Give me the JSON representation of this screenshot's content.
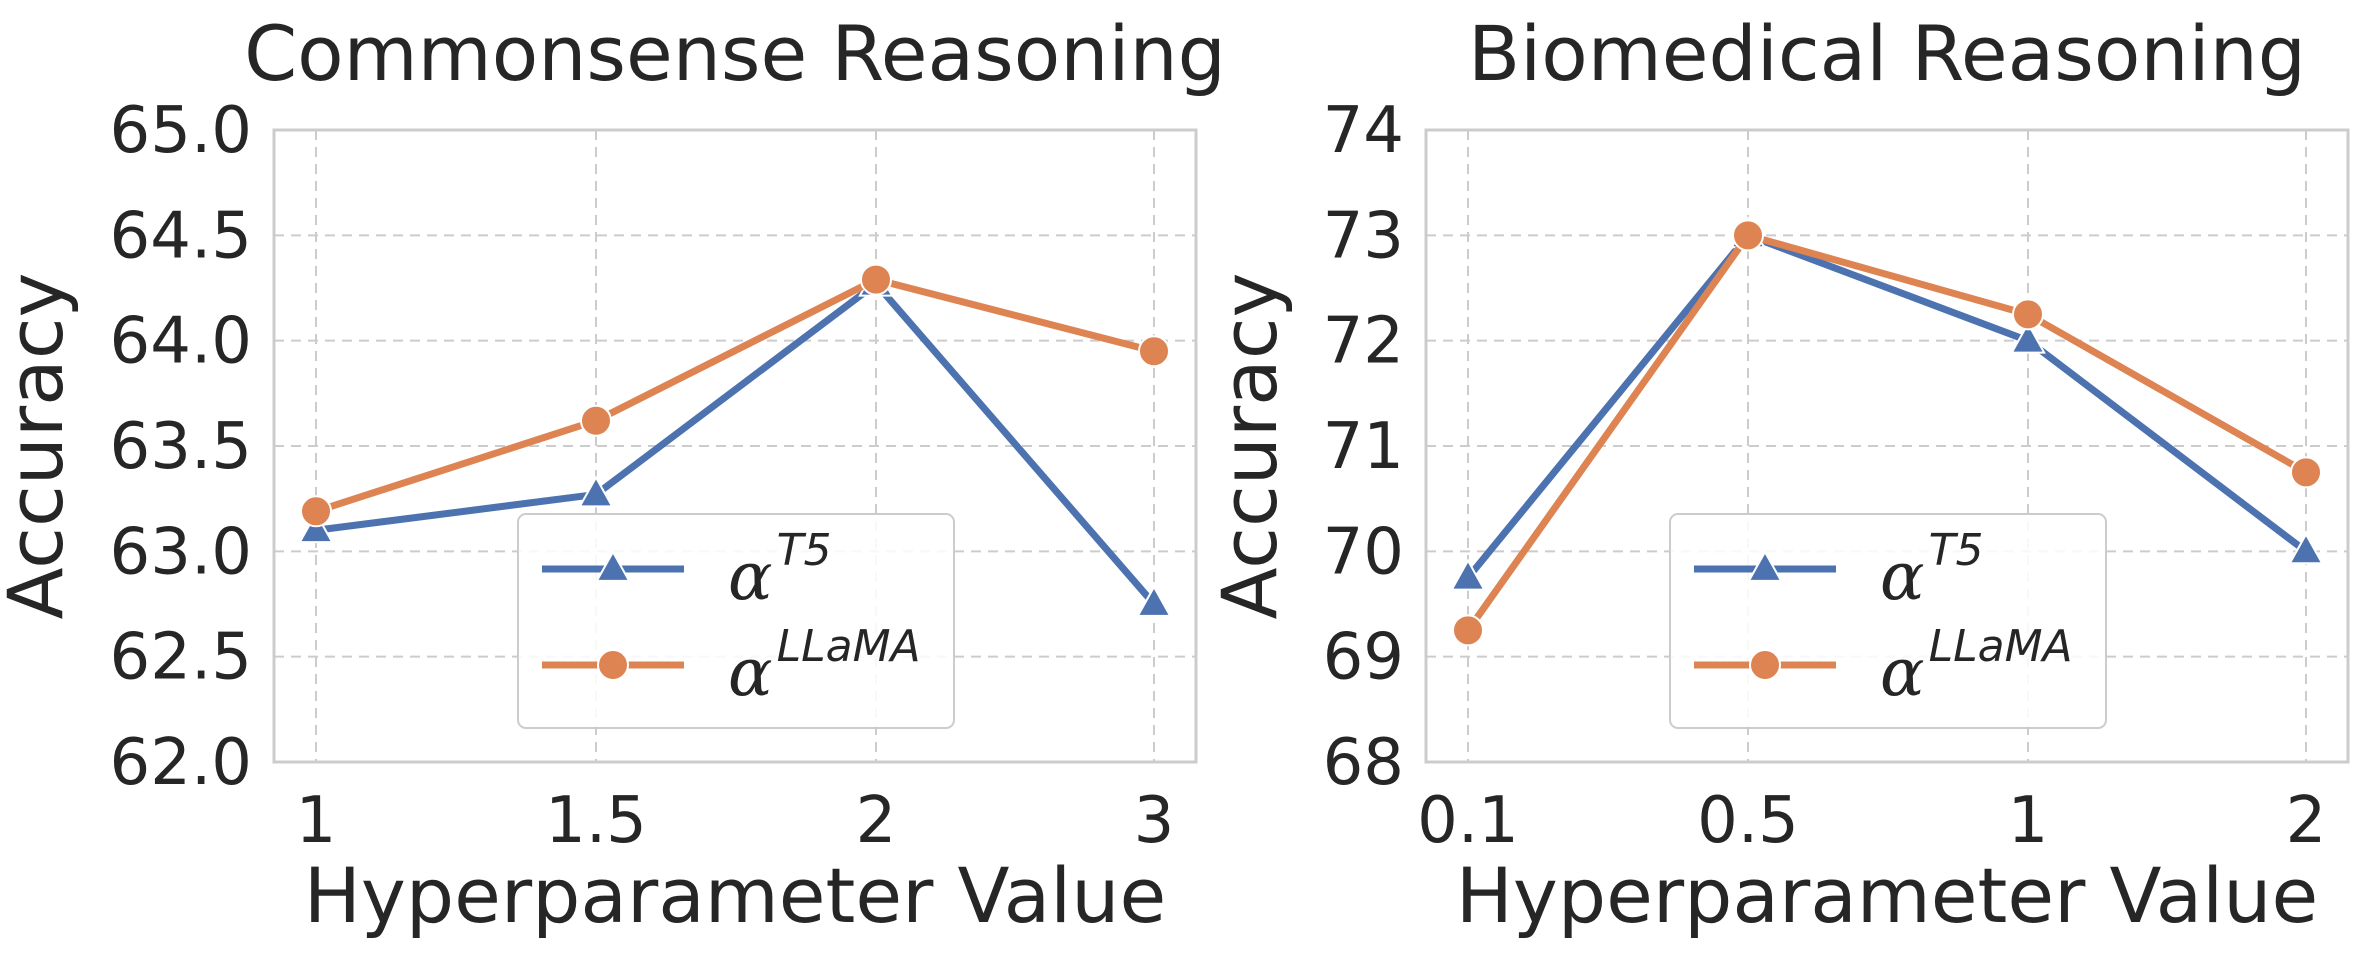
{
  "chart_data": [
    {
      "type": "line",
      "title": "Commonsense Reasoning",
      "xlabel": "Hyperparameter Value",
      "ylabel": "Accuracy",
      "categories": [
        "1",
        "1.5",
        "2",
        "3"
      ],
      "ylim": [
        62.0,
        65.0
      ],
      "yticks": [
        "62.0",
        "62.5",
        "63.0",
        "63.5",
        "64.0",
        "64.5",
        "65.0"
      ],
      "grid": true,
      "legend_placement": "lower-center",
      "series": [
        {
          "name_base": "α",
          "name_sup": "T5",
          "color": "#4c72b0",
          "marker": "triangle",
          "values": [
            63.1,
            63.27,
            64.27,
            62.75
          ]
        },
        {
          "name_base": "α",
          "name_sup": "LLaMA",
          "color": "#dd8452",
          "marker": "circle",
          "values": [
            63.19,
            63.62,
            64.29,
            63.95
          ]
        }
      ]
    },
    {
      "type": "line",
      "title": "Biomedical Reasoning",
      "xlabel": "Hyperparameter Value",
      "ylabel": "Accuracy",
      "categories": [
        "0.1",
        "0.5",
        "1",
        "2"
      ],
      "ylim": [
        68,
        74
      ],
      "yticks": [
        "68",
        "69",
        "70",
        "71",
        "72",
        "73",
        "74"
      ],
      "grid": true,
      "legend_placement": "lower-center",
      "series": [
        {
          "name_base": "α",
          "name_sup": "T5",
          "color": "#4c72b0",
          "marker": "triangle",
          "values": [
            69.75,
            73.0,
            72.0,
            70.0
          ]
        },
        {
          "name_base": "α",
          "name_sup": "LLaMA",
          "color": "#dd8452",
          "marker": "circle",
          "values": [
            69.25,
            73.0,
            72.25,
            70.75
          ]
        }
      ]
    }
  ]
}
